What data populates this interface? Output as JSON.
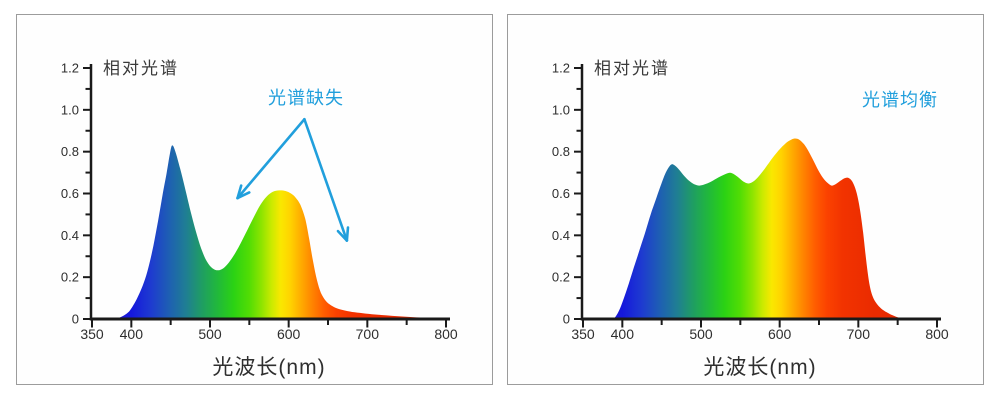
{
  "page": {
    "background": "#ffffff",
    "panel_border": "#9c9c9c",
    "panel_background": "#fefefe"
  },
  "colors": {
    "axis": "#1a1a1a",
    "tick_label": "#2e2e2e",
    "title_text": "#3a3a3a",
    "annotation_blue": "#219fdc"
  },
  "spectrum_gradient": [
    {
      "nm": 380,
      "color": "#1f17cf"
    },
    {
      "nm": 400,
      "color": "#1518dc"
    },
    {
      "nm": 425,
      "color": "#1e3bd0"
    },
    {
      "nm": 450,
      "color": "#1e62b0"
    },
    {
      "nm": 470,
      "color": "#1f7f92"
    },
    {
      "nm": 490,
      "color": "#1f9e62"
    },
    {
      "nm": 510,
      "color": "#21b93a"
    },
    {
      "nm": 530,
      "color": "#2bd214"
    },
    {
      "nm": 550,
      "color": "#52dd04"
    },
    {
      "nm": 565,
      "color": "#8ce400"
    },
    {
      "nm": 578,
      "color": "#c9ea00"
    },
    {
      "nm": 590,
      "color": "#fae800"
    },
    {
      "nm": 602,
      "color": "#ffd300"
    },
    {
      "nm": 615,
      "color": "#ffae00"
    },
    {
      "nm": 630,
      "color": "#ff8400"
    },
    {
      "nm": 645,
      "color": "#ff5d00"
    },
    {
      "nm": 660,
      "color": "#fb4200"
    },
    {
      "nm": 680,
      "color": "#f23300"
    },
    {
      "nm": 720,
      "color": "#ea2b00"
    },
    {
      "nm": 800,
      "color": "#e62800"
    }
  ],
  "chart_data": [
    {
      "type": "area",
      "title": "相对光谱",
      "xlabel": "光波长(nm)",
      "ylabel": "",
      "xlim": [
        350,
        800
      ],
      "ylim": [
        0,
        1.2
      ],
      "x_major_ticks": [
        350,
        400,
        500,
        600,
        700,
        800
      ],
      "x_tick_labels": [
        "350",
        "400",
        "500",
        "600",
        "700",
        "800"
      ],
      "x_minor_ticks": [
        450,
        550,
        650,
        750
      ],
      "y_major_ticks": [
        0,
        0.2,
        0.4,
        0.6,
        0.8,
        1.0,
        1.2
      ],
      "y_tick_labels": [
        "0",
        "0.2",
        "0.4",
        "0.6",
        "0.8",
        "1.0",
        "1.2"
      ],
      "y_minor_ticks": [
        0.1,
        0.3,
        0.5,
        0.7,
        0.9,
        1.1
      ],
      "annotation": {
        "text": "光谱缺失",
        "x_nm": 622,
        "y": 1.06,
        "arrows": [
          {
            "from": [
              620,
              0.955
            ],
            "to": [
              535,
              0.578
            ]
          },
          {
            "from": [
              620,
              0.955
            ],
            "to": [
              674,
              0.375
            ]
          }
        ]
      },
      "points": [
        [
          380,
          0
        ],
        [
          386,
          0.008
        ],
        [
          392,
          0.02
        ],
        [
          398,
          0.04
        ],
        [
          404,
          0.075
        ],
        [
          410,
          0.12
        ],
        [
          416,
          0.175
        ],
        [
          422,
          0.25
        ],
        [
          428,
          0.35
        ],
        [
          434,
          0.47
        ],
        [
          440,
          0.6
        ],
        [
          445,
          0.7
        ],
        [
          449,
          0.79
        ],
        [
          452,
          0.83
        ],
        [
          456,
          0.8
        ],
        [
          462,
          0.72
        ],
        [
          468,
          0.63
        ],
        [
          475,
          0.52
        ],
        [
          482,
          0.42
        ],
        [
          489,
          0.335
        ],
        [
          496,
          0.275
        ],
        [
          503,
          0.243
        ],
        [
          510,
          0.233
        ],
        [
          517,
          0.243
        ],
        [
          524,
          0.27
        ],
        [
          532,
          0.315
        ],
        [
          540,
          0.37
        ],
        [
          548,
          0.43
        ],
        [
          556,
          0.49
        ],
        [
          564,
          0.545
        ],
        [
          572,
          0.585
        ],
        [
          580,
          0.608
        ],
        [
          588,
          0.615
        ],
        [
          596,
          0.612
        ],
        [
          603,
          0.6
        ],
        [
          609,
          0.58
        ],
        [
          615,
          0.545
        ],
        [
          621,
          0.48
        ],
        [
          626,
          0.385
        ],
        [
          631,
          0.275
        ],
        [
          636,
          0.185
        ],
        [
          641,
          0.125
        ],
        [
          647,
          0.088
        ],
        [
          654,
          0.065
        ],
        [
          662,
          0.05
        ],
        [
          672,
          0.04
        ],
        [
          684,
          0.032
        ],
        [
          698,
          0.026
        ],
        [
          714,
          0.02
        ],
        [
          732,
          0.015
        ],
        [
          752,
          0.01
        ],
        [
          772,
          0.006
        ],
        [
          788,
          0.003
        ],
        [
          798,
          0.001
        ]
      ]
    },
    {
      "type": "area",
      "title": "相对光谱",
      "xlabel": "光波长(nm)",
      "ylabel": "",
      "xlim": [
        350,
        800
      ],
      "ylim": [
        0,
        1.2
      ],
      "x_major_ticks": [
        350,
        400,
        500,
        600,
        700,
        800
      ],
      "x_tick_labels": [
        "350",
        "400",
        "500",
        "600",
        "700",
        "800"
      ],
      "x_minor_ticks": [
        450,
        550,
        650,
        750
      ],
      "y_major_ticks": [
        0,
        0.2,
        0.4,
        0.6,
        0.8,
        1.0,
        1.2
      ],
      "y_tick_labels": [
        "0",
        "0.2",
        "0.4",
        "0.6",
        "0.8",
        "1.0",
        "1.2"
      ],
      "y_minor_ticks": [
        0.1,
        0.3,
        0.5,
        0.7,
        0.9,
        1.1
      ],
      "annotation": {
        "text": "光谱均衡",
        "x_nm": 753,
        "y": 1.05,
        "arrows": []
      },
      "points": [
        [
          389,
          0
        ],
        [
          393,
          0.02
        ],
        [
          397,
          0.05
        ],
        [
          402,
          0.1
        ],
        [
          407,
          0.155
        ],
        [
          412,
          0.215
        ],
        [
          418,
          0.285
        ],
        [
          424,
          0.355
        ],
        [
          430,
          0.425
        ],
        [
          436,
          0.5
        ],
        [
          442,
          0.565
        ],
        [
          448,
          0.63
        ],
        [
          454,
          0.69
        ],
        [
          459,
          0.725
        ],
        [
          463,
          0.74
        ],
        [
          468,
          0.73
        ],
        [
          473,
          0.71
        ],
        [
          479,
          0.682
        ],
        [
          485,
          0.66
        ],
        [
          491,
          0.645
        ],
        [
          498,
          0.638
        ],
        [
          505,
          0.644
        ],
        [
          512,
          0.655
        ],
        [
          519,
          0.67
        ],
        [
          526,
          0.684
        ],
        [
          532,
          0.694
        ],
        [
          537,
          0.699
        ],
        [
          542,
          0.692
        ],
        [
          548,
          0.675
        ],
        [
          554,
          0.657
        ],
        [
          560,
          0.648
        ],
        [
          566,
          0.656
        ],
        [
          572,
          0.676
        ],
        [
          579,
          0.708
        ],
        [
          586,
          0.745
        ],
        [
          593,
          0.78
        ],
        [
          600,
          0.812
        ],
        [
          607,
          0.838
        ],
        [
          613,
          0.854
        ],
        [
          619,
          0.863
        ],
        [
          625,
          0.857
        ],
        [
          631,
          0.835
        ],
        [
          637,
          0.8
        ],
        [
          643,
          0.757
        ],
        [
          649,
          0.712
        ],
        [
          655,
          0.675
        ],
        [
          661,
          0.65
        ],
        [
          666,
          0.638
        ],
        [
          671,
          0.644
        ],
        [
          677,
          0.66
        ],
        [
          682,
          0.672
        ],
        [
          686,
          0.676
        ],
        [
          690,
          0.668
        ],
        [
          694,
          0.645
        ],
        [
          698,
          0.6
        ],
        [
          702,
          0.525
        ],
        [
          706,
          0.415
        ],
        [
          710,
          0.28
        ],
        [
          714,
          0.17
        ],
        [
          718,
          0.11
        ],
        [
          723,
          0.075
        ],
        [
          729,
          0.05
        ],
        [
          736,
          0.032
        ],
        [
          744,
          0.017
        ],
        [
          751,
          0.007
        ],
        [
          757,
          0.002
        ],
        [
          762,
          0
        ]
      ]
    }
  ]
}
